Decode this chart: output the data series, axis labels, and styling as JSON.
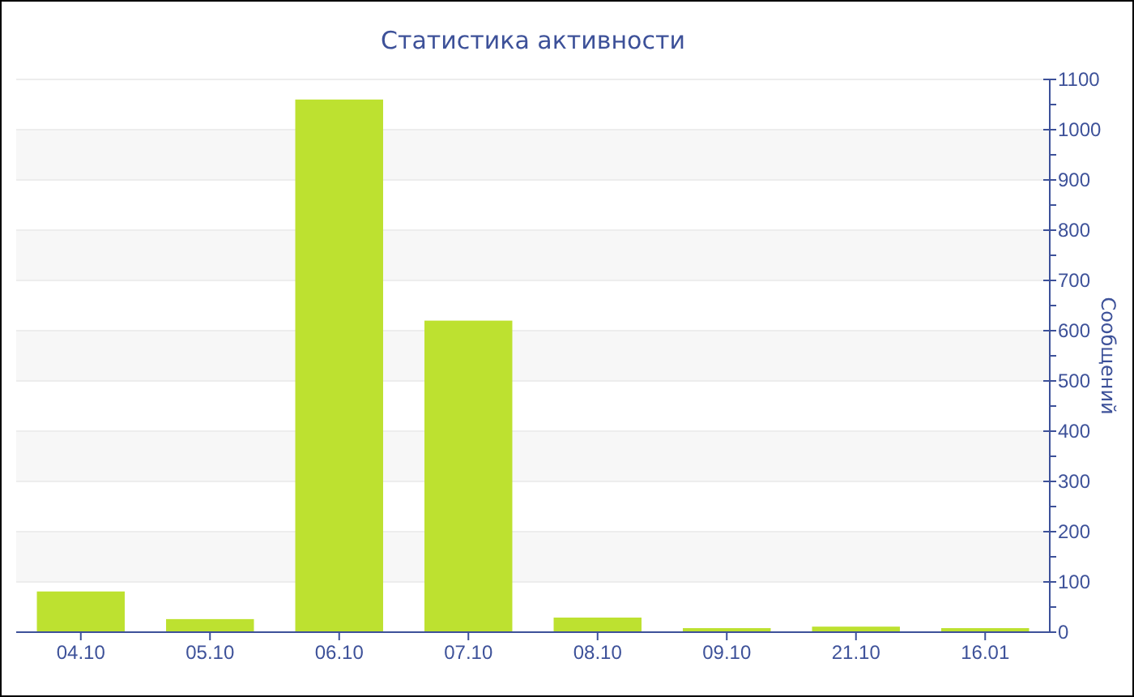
{
  "chart_data": {
    "type": "bar",
    "title": "Статистика активности",
    "ylabel": "Сообщений",
    "categories": [
      "04.10",
      "05.10",
      "06.10",
      "07.10",
      "08.10",
      "09.10",
      "21.10",
      "16.01"
    ],
    "values": [
      81,
      26,
      1060,
      620,
      29,
      8,
      11,
      8
    ],
    "color": "#bde130",
    "ylim": [
      0,
      1100
    ],
    "yticks": [
      0,
      {
        "value": 50,
        "label": null
      },
      100,
      {
        "value": 150,
        "label": null
      },
      200,
      {
        "value": 250,
        "label": null
      },
      300,
      {
        "value": 350,
        "label": null
      },
      400,
      {
        "value": 450,
        "label": null
      },
      500,
      {
        "value": 550,
        "label": null
      },
      600,
      {
        "value": 650,
        "label": null
      },
      700,
      {
        "value": 750,
        "label": null
      },
      800,
      {
        "value": 850,
        "label": null
      },
      900,
      {
        "value": 950,
        "label": null
      },
      1000,
      {
        "value": 1050,
        "label": null
      },
      1100
    ],
    "grid": "y"
  }
}
